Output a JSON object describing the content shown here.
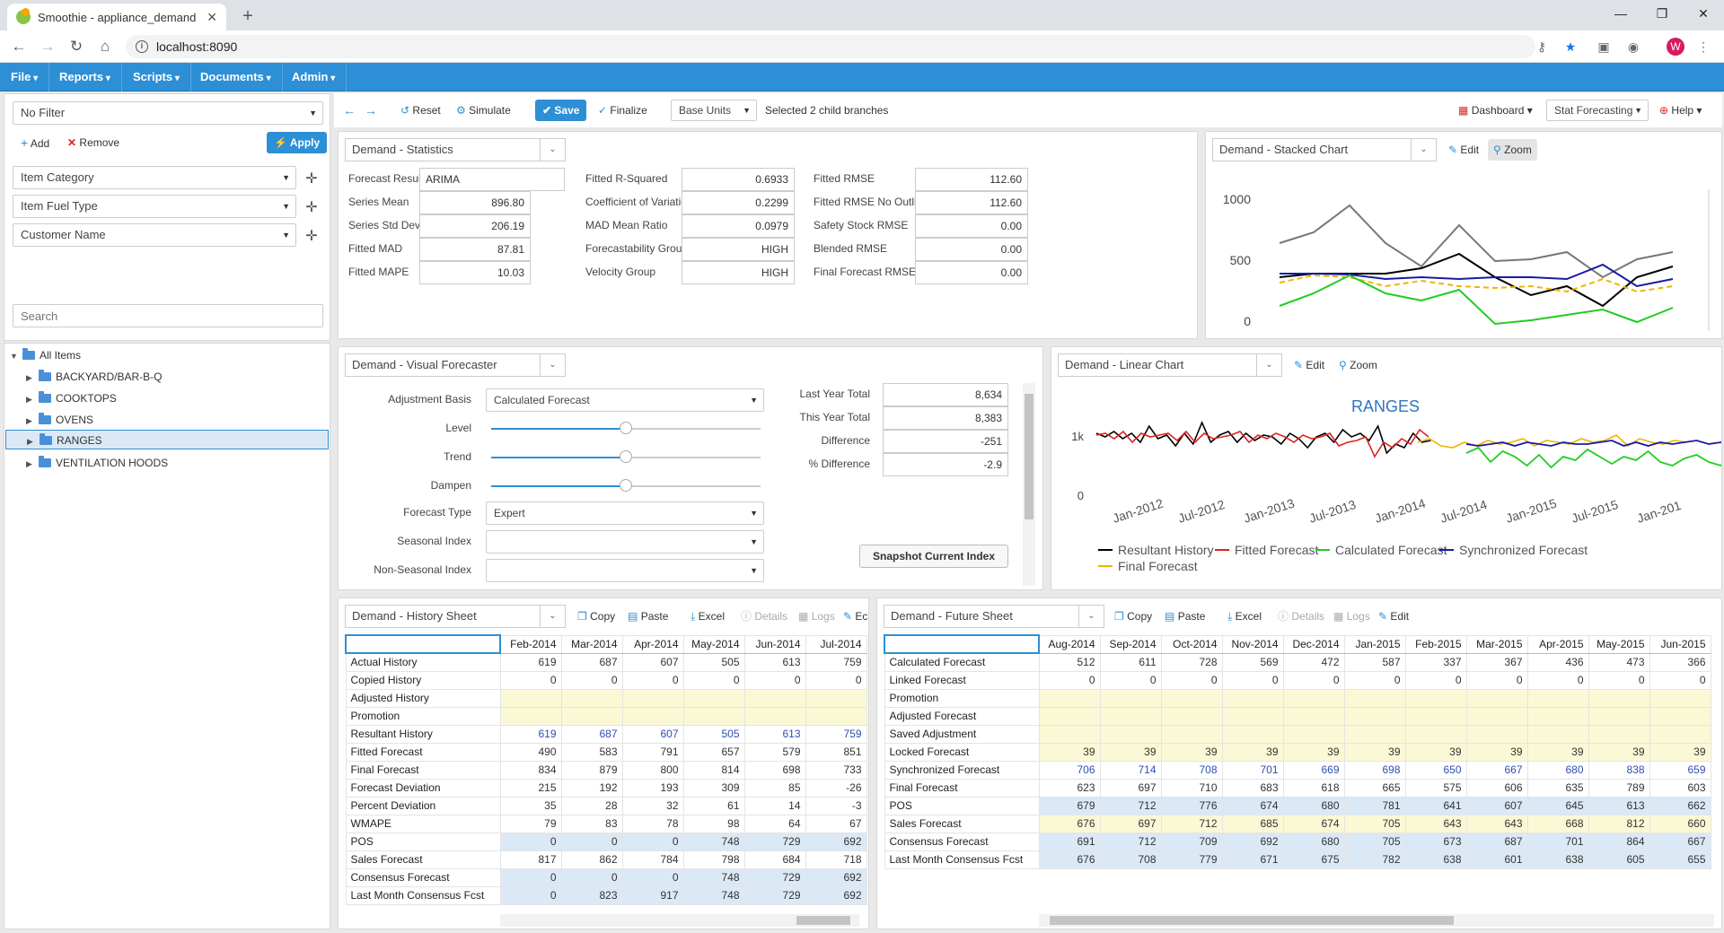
{
  "browser": {
    "tab_title": "Smoothie - appliance_demand",
    "url": "localhost:8090",
    "avatar_letter": "W"
  },
  "menu": [
    "File",
    "Reports",
    "Scripts",
    "Documents",
    "Admin"
  ],
  "filter": {
    "selected": "No Filter",
    "add": "Add",
    "remove": "Remove",
    "apply": "Apply",
    "fields": [
      "Item Category",
      "Item Fuel Type",
      "Customer Name"
    ],
    "search_placeholder": "Search"
  },
  "tree": {
    "root": "All Items",
    "children": [
      "BACKYARD/BAR-B-Q",
      "COOKTOPS",
      "OVENS",
      "RANGES",
      "VENTILATION HOODS"
    ],
    "selected": "RANGES"
  },
  "toolbar": {
    "reset": "Reset",
    "simulate": "Simulate",
    "save": "Save",
    "finalize": "Finalize",
    "units": "Base Units",
    "status": "Selected 2 child branches",
    "dashboard": "Dashboard",
    "forecasting": "Stat Forecasting",
    "help": "Help"
  },
  "stats": {
    "title": "Demand - Statistics",
    "col1": [
      [
        "Forecast Results",
        "ARIMA"
      ],
      [
        "Series Mean",
        "896.80"
      ],
      [
        "Series Std Dev",
        "206.19"
      ],
      [
        "Fitted MAD",
        "87.81"
      ],
      [
        "Fitted MAPE",
        "10.03"
      ]
    ],
    "col2": [
      [
        "Fitted R-Squared",
        "0.6933"
      ],
      [
        "Coefficient of Variation",
        "0.2299"
      ],
      [
        "MAD Mean Ratio",
        "0.0979"
      ],
      [
        "Forecastability Group",
        "HIGH"
      ],
      [
        "Velocity Group",
        "HIGH"
      ]
    ],
    "col3": [
      [
        "Fitted RMSE",
        "112.60"
      ],
      [
        "Fitted RMSE No Outliers",
        "112.60"
      ],
      [
        "Safety Stock RMSE",
        "0.00"
      ],
      [
        "Blended RMSE",
        "0.00"
      ],
      [
        "Final Forecast RMSE",
        "0.00"
      ]
    ]
  },
  "stacked": {
    "title": "Demand - Stacked Chart",
    "edit": "Edit",
    "zoom": "Zoom",
    "yticks": [
      "1000",
      "500",
      "0"
    ]
  },
  "visual": {
    "title": "Demand - Visual Forecaster",
    "adjustment_basis_label": "Adjustment Basis",
    "adjustment_basis": "Calculated Forecast",
    "level": "Level",
    "trend": "Trend",
    "dampen": "Dampen",
    "forecast_type_label": "Forecast Type",
    "forecast_type": "Expert",
    "seasonal": "Seasonal Index",
    "nonseasonal": "Non-Seasonal Index",
    "snapshot": "Snapshot Current Index",
    "level_value": 0.5,
    "trend_value": 0.5,
    "dampen_value": 0.5,
    "totals": [
      [
        "Last Year Total",
        "8,634"
      ],
      [
        "This Year Total",
        "8,383"
      ],
      [
        "Difference",
        "-251"
      ],
      [
        "% Difference",
        "-2.9"
      ]
    ]
  },
  "linear": {
    "title": "Demand - Linear Chart",
    "edit": "Edit",
    "zoom": "Zoom",
    "chart_title": "RANGES",
    "yticks": [
      "1k",
      "0"
    ],
    "xticks": [
      "Jan-2012",
      "Jul-2012",
      "Jan-2013",
      "Jul-2013",
      "Jan-2014",
      "Jul-2014",
      "Jan-2015",
      "Jul-2015",
      "Jan-201"
    ],
    "legend": [
      {
        "name": "Resultant History",
        "color": "#000000"
      },
      {
        "name": "Fitted Forecast",
        "color": "#e02020"
      },
      {
        "name": "Calculated Forecast",
        "color": "#22cc22"
      },
      {
        "name": "Synchronized Forecast",
        "color": "#1a1aa6"
      },
      {
        "name": "Final Forecast",
        "color": "#f0b400"
      }
    ]
  },
  "history": {
    "title": "Demand - History Sheet",
    "copy": "Copy",
    "paste": "Paste",
    "excel": "Excel",
    "details": "Details",
    "logs": "Logs",
    "edit": "Ec",
    "months": [
      "Feb-2014",
      "Mar-2014",
      "Apr-2014",
      "May-2014",
      "Jun-2014",
      "Jul-2014"
    ],
    "rows": [
      {
        "label": "Actual History",
        "values": [
          "619",
          "687",
          "607",
          "505",
          "613",
          "759"
        ],
        "style": ""
      },
      {
        "label": "Copied History",
        "values": [
          "0",
          "0",
          "0",
          "0",
          "0",
          "0"
        ],
        "style": ""
      },
      {
        "label": "Adjusted History",
        "values": [
          "",
          "",
          "",
          "",
          "",
          ""
        ],
        "style": "cy"
      },
      {
        "label": "Promotion",
        "values": [
          "",
          "",
          "",
          "",
          "",
          ""
        ],
        "style": "cy"
      },
      {
        "label": "Resultant History",
        "values": [
          "619",
          "687",
          "607",
          "505",
          "613",
          "759"
        ],
        "style": "blue"
      },
      {
        "label": "Fitted Forecast",
        "values": [
          "490",
          "583",
          "791",
          "657",
          "579",
          "851"
        ],
        "style": ""
      },
      {
        "label": "Final Forecast",
        "values": [
          "834",
          "879",
          "800",
          "814",
          "698",
          "733"
        ],
        "style": ""
      },
      {
        "label": "Forecast Deviation",
        "values": [
          "215",
          "192",
          "193",
          "309",
          "85",
          "-26"
        ],
        "style": ""
      },
      {
        "label": "Percent Deviation",
        "values": [
          "35",
          "28",
          "32",
          "61",
          "14",
          "-3"
        ],
        "style": ""
      },
      {
        "label": "WMAPE",
        "values": [
          "79",
          "83",
          "78",
          "98",
          "64",
          "67"
        ],
        "style": ""
      },
      {
        "label": "POS",
        "values": [
          "0",
          "0",
          "0",
          "748",
          "729",
          "692"
        ],
        "style": "cb"
      },
      {
        "label": "Sales Forecast",
        "values": [
          "817",
          "862",
          "784",
          "798",
          "684",
          "718"
        ],
        "style": ""
      },
      {
        "label": "Consensus Forecast",
        "values": [
          "0",
          "0",
          "0",
          "748",
          "729",
          "692"
        ],
        "style": "cb"
      },
      {
        "label": "Last Month Consensus Fcst",
        "values": [
          "0",
          "823",
          "917",
          "748",
          "729",
          "692"
        ],
        "style": "cb"
      }
    ]
  },
  "future": {
    "title": "Demand - Future Sheet",
    "copy": "Copy",
    "paste": "Paste",
    "excel": "Excel",
    "details": "Details",
    "logs": "Logs",
    "edit": "Edit",
    "months": [
      "Aug-2014",
      "Sep-2014",
      "Oct-2014",
      "Nov-2014",
      "Dec-2014",
      "Jan-2015",
      "Feb-2015",
      "Mar-2015",
      "Apr-2015",
      "May-2015",
      "Jun-2015"
    ],
    "rows": [
      {
        "label": "Calculated Forecast",
        "values": [
          "512",
          "611",
          "728",
          "569",
          "472",
          "587",
          "337",
          "367",
          "436",
          "473",
          "366"
        ],
        "style": ""
      },
      {
        "label": "Linked Forecast",
        "values": [
          "0",
          "0",
          "0",
          "0",
          "0",
          "0",
          "0",
          "0",
          "0",
          "0",
          "0"
        ],
        "style": ""
      },
      {
        "label": "Promotion",
        "values": [
          "",
          "",
          "",
          "",
          "",
          "",
          "",
          "",
          "",
          "",
          ""
        ],
        "style": "cy"
      },
      {
        "label": "Adjusted Forecast",
        "values": [
          "",
          "",
          "",
          "",
          "",
          "",
          "",
          "",
          "",
          "",
          ""
        ],
        "style": "cy"
      },
      {
        "label": "Saved Adjustment",
        "values": [
          "",
          "",
          "",
          "",
          "",
          "",
          "",
          "",
          "",
          "",
          ""
        ],
        "style": "cy"
      },
      {
        "label": "Locked Forecast",
        "values": [
          "39",
          "39",
          "39",
          "39",
          "39",
          "39",
          "39",
          "39",
          "39",
          "39",
          "39"
        ],
        "style": "cy"
      },
      {
        "label": "Synchronized Forecast",
        "values": [
          "706",
          "714",
          "708",
          "701",
          "669",
          "698",
          "650",
          "667",
          "680",
          "838",
          "659"
        ],
        "style": "blue"
      },
      {
        "label": "Final Forecast",
        "values": [
          "623",
          "697",
          "710",
          "683",
          "618",
          "665",
          "575",
          "606",
          "635",
          "789",
          "603"
        ],
        "style": ""
      },
      {
        "label": "POS",
        "values": [
          "679",
          "712",
          "776",
          "674",
          "680",
          "781",
          "641",
          "607",
          "645",
          "613",
          "662"
        ],
        "style": "cb"
      },
      {
        "label": "Sales Forecast",
        "values": [
          "676",
          "697",
          "712",
          "685",
          "674",
          "705",
          "643",
          "643",
          "668",
          "812",
          "660"
        ],
        "style": "cy"
      },
      {
        "label": "Consensus Forecast",
        "values": [
          "691",
          "712",
          "709",
          "692",
          "680",
          "705",
          "673",
          "687",
          "701",
          "864",
          "667"
        ],
        "style": "cb"
      },
      {
        "label": "Last Month Consensus Fcst",
        "values": [
          "676",
          "708",
          "779",
          "671",
          "675",
          "782",
          "638",
          "601",
          "638",
          "605",
          "655"
        ],
        "style": "cb"
      }
    ]
  }
}
